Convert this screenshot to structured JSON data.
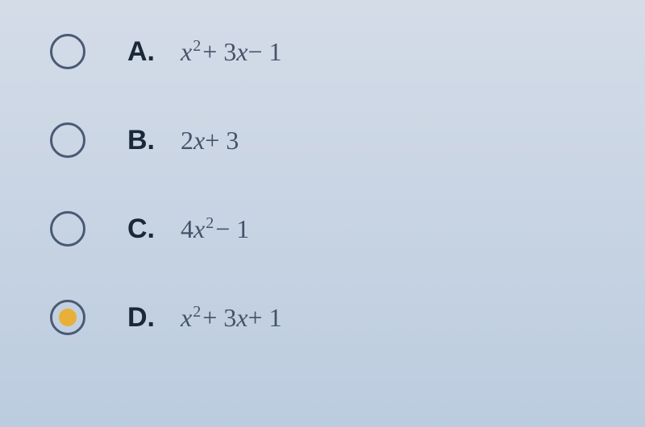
{
  "options": [
    {
      "label": "A.",
      "formula_parts": [
        {
          "text": "x",
          "type": "var"
        },
        {
          "text": "2",
          "type": "sup"
        },
        {
          "text": " + 3",
          "type": "num"
        },
        {
          "text": "x",
          "type": "var"
        },
        {
          "text": " − 1",
          "type": "num"
        }
      ],
      "selected": false
    },
    {
      "label": "B.",
      "formula_parts": [
        {
          "text": "2",
          "type": "num"
        },
        {
          "text": "x",
          "type": "var"
        },
        {
          "text": " + 3",
          "type": "num"
        }
      ],
      "selected": false
    },
    {
      "label": "C.",
      "formula_parts": [
        {
          "text": "4",
          "type": "num"
        },
        {
          "text": "x",
          "type": "var"
        },
        {
          "text": "2",
          "type": "sup"
        },
        {
          "text": " − 1",
          "type": "num"
        }
      ],
      "selected": false
    },
    {
      "label": "D.",
      "formula_parts": [
        {
          "text": "x",
          "type": "var"
        },
        {
          "text": "2",
          "type": "sup"
        },
        {
          "text": " + 3",
          "type": "num"
        },
        {
          "text": "x",
          "type": "var"
        },
        {
          "text": " + 1",
          "type": "num"
        }
      ],
      "selected": true
    }
  ],
  "styling": {
    "background_gradient": [
      "#d4dce8",
      "#c8d4e3",
      "#bcccdf"
    ],
    "radio_border_color": "#4a5a75",
    "radio_fill_color": "#e8b038",
    "label_color": "#1a2838",
    "formula_color": "#465268",
    "label_fontsize": 34,
    "formula_fontsize": 32,
    "radio_diameter": 44,
    "row_spacing": 62
  }
}
